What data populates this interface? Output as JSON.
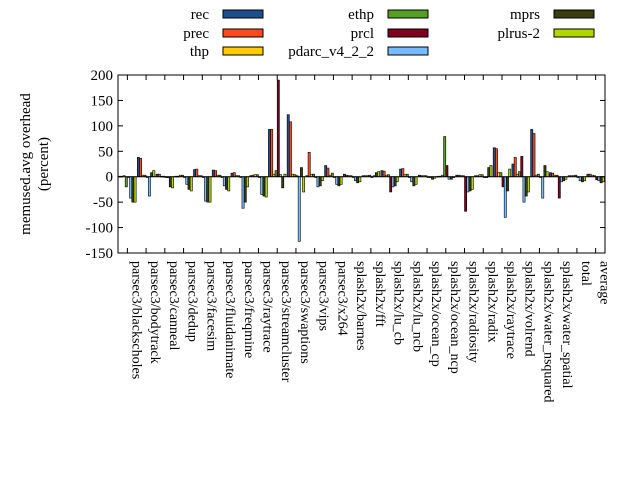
{
  "chart_data": {
    "type": "bar",
    "title": "",
    "xlabel": "",
    "ylabel": "memused.avg overhead\n(percent)",
    "ylim": [
      -150,
      200
    ],
    "yticks": [
      -150,
      -100,
      -50,
      0,
      50,
      100,
      150,
      200
    ],
    "grid": false,
    "legend_position": "top",
    "categories": [
      "parsec3/blackscholes",
      "parsec3/bodytrack",
      "parsec3/canneal",
      "parsec3/dedup",
      "parsec3/facesim",
      "parsec3/fluidanimate",
      "parsec3/freqmine",
      "parsec3/raytrace",
      "parsec3/streamcluster",
      "parsec3/swaptions",
      "parsec3/vips",
      "parsec3/x264",
      "splash2x/barnes",
      "splash2x/fft",
      "splash2x/lu_cb",
      "splash2x/lu_ncb",
      "splash2x/ocean_cp",
      "splash2x/ocean_ncp",
      "splash2x/radiosity",
      "splash2x/radix",
      "splash2x/raytrace",
      "splash2x/volrend",
      "splash2x/water_nsquared",
      "splash2x/water_spatial",
      "total",
      "average"
    ],
    "series": [
      {
        "name": "rec",
        "color": "#1f4e8f",
        "values": [
          1,
          38,
          5,
          1,
          14,
          13,
          7,
          2,
          93,
          122,
          2,
          22,
          5,
          2,
          12,
          15,
          3,
          1,
          3,
          2,
          57,
          25,
          93,
          8,
          2,
          5
        ]
      },
      {
        "name": "prec",
        "color": "#ff4a1f",
        "values": [
          1,
          36,
          5,
          1,
          15,
          12,
          8,
          3,
          93,
          108,
          48,
          17,
          3,
          2,
          11,
          16,
          2,
          1,
          3,
          2,
          55,
          38,
          85,
          7,
          2,
          5
        ]
      },
      {
        "name": "thp",
        "color": "#ffcc00",
        "values": [
          2,
          3,
          1,
          3,
          2,
          3,
          2,
          4,
          5,
          5,
          5,
          3,
          2,
          2,
          3,
          4,
          2,
          3,
          2,
          4,
          8,
          5,
          3,
          3,
          2,
          3
        ]
      },
      {
        "name": "ethp",
        "color": "#55a022",
        "values": [
          -20,
          3,
          1,
          3,
          2,
          3,
          2,
          4,
          12,
          4,
          5,
          7,
          2,
          3,
          4,
          5,
          2,
          79,
          2,
          4,
          8,
          10,
          5,
          3,
          3,
          2
        ]
      },
      {
        "name": "prcl",
        "color": "#800020",
        "values": [
          0,
          0,
          0,
          0,
          0,
          0,
          0,
          0,
          190,
          2,
          0,
          0,
          0,
          0,
          -30,
          0,
          0,
          22,
          -68,
          0,
          -20,
          40,
          0,
          -42,
          0,
          -6
        ]
      },
      {
        "name": "pdarc_v4_2_2",
        "color": "#77bbff",
        "values": [
          -42,
          -38,
          -2,
          -15,
          -48,
          -18,
          -62,
          -35,
          4,
          -127,
          -20,
          -15,
          -8,
          2,
          -20,
          -10,
          -2,
          -5,
          -30,
          -2,
          -80,
          -50,
          -42,
          -10,
          -8,
          -8
        ]
      },
      {
        "name": "mprs",
        "color": "#3a3d10",
        "values": [
          -50,
          8,
          -20,
          -25,
          -50,
          -25,
          -50,
          -38,
          -22,
          18,
          -18,
          -18,
          -12,
          8,
          -18,
          -18,
          -5,
          -5,
          -28,
          18,
          -28,
          -38,
          22,
          -8,
          -10,
          -12
        ]
      },
      {
        "name": "plrus-2",
        "color": "#b0d800",
        "values": [
          -50,
          12,
          -22,
          -28,
          -50,
          -28,
          -20,
          -40,
          5,
          -30,
          -8,
          -15,
          -10,
          10,
          -10,
          -15,
          -3,
          -2,
          -25,
          22,
          15,
          -30,
          10,
          -5,
          -8,
          -10
        ]
      }
    ]
  }
}
